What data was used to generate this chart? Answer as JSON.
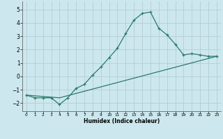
{
  "xlabel": "Humidex (Indice chaleur)",
  "background_color": "#cce8ee",
  "grid_color": "#b8d0d8",
  "line_color": "#2a7a6a",
  "xlim": [
    -0.5,
    23.5
  ],
  "ylim": [
    -2.6,
    5.6
  ],
  "xticks": [
    0,
    1,
    2,
    3,
    4,
    5,
    6,
    7,
    8,
    9,
    10,
    11,
    12,
    13,
    14,
    15,
    16,
    17,
    18,
    19,
    20,
    21,
    22,
    23
  ],
  "yticks": [
    -2,
    -1,
    0,
    1,
    2,
    3,
    4,
    5
  ],
  "curve1_x": [
    0,
    1,
    2,
    3,
    4,
    5,
    6,
    7,
    8,
    9,
    10,
    11,
    12,
    13,
    14,
    15,
    16,
    17,
    18,
    19,
    20,
    21,
    22,
    23
  ],
  "curve1_y": [
    -1.4,
    -1.6,
    -1.6,
    -1.6,
    -2.1,
    -1.6,
    -0.9,
    -0.6,
    0.1,
    0.7,
    1.4,
    2.1,
    3.2,
    4.2,
    4.7,
    4.8,
    3.6,
    3.1,
    2.4,
    1.6,
    1.7,
    1.6,
    1.5,
    1.5
  ],
  "curve2_x": [
    0,
    4,
    23
  ],
  "curve2_y": [
    -1.4,
    -1.6,
    1.5
  ]
}
